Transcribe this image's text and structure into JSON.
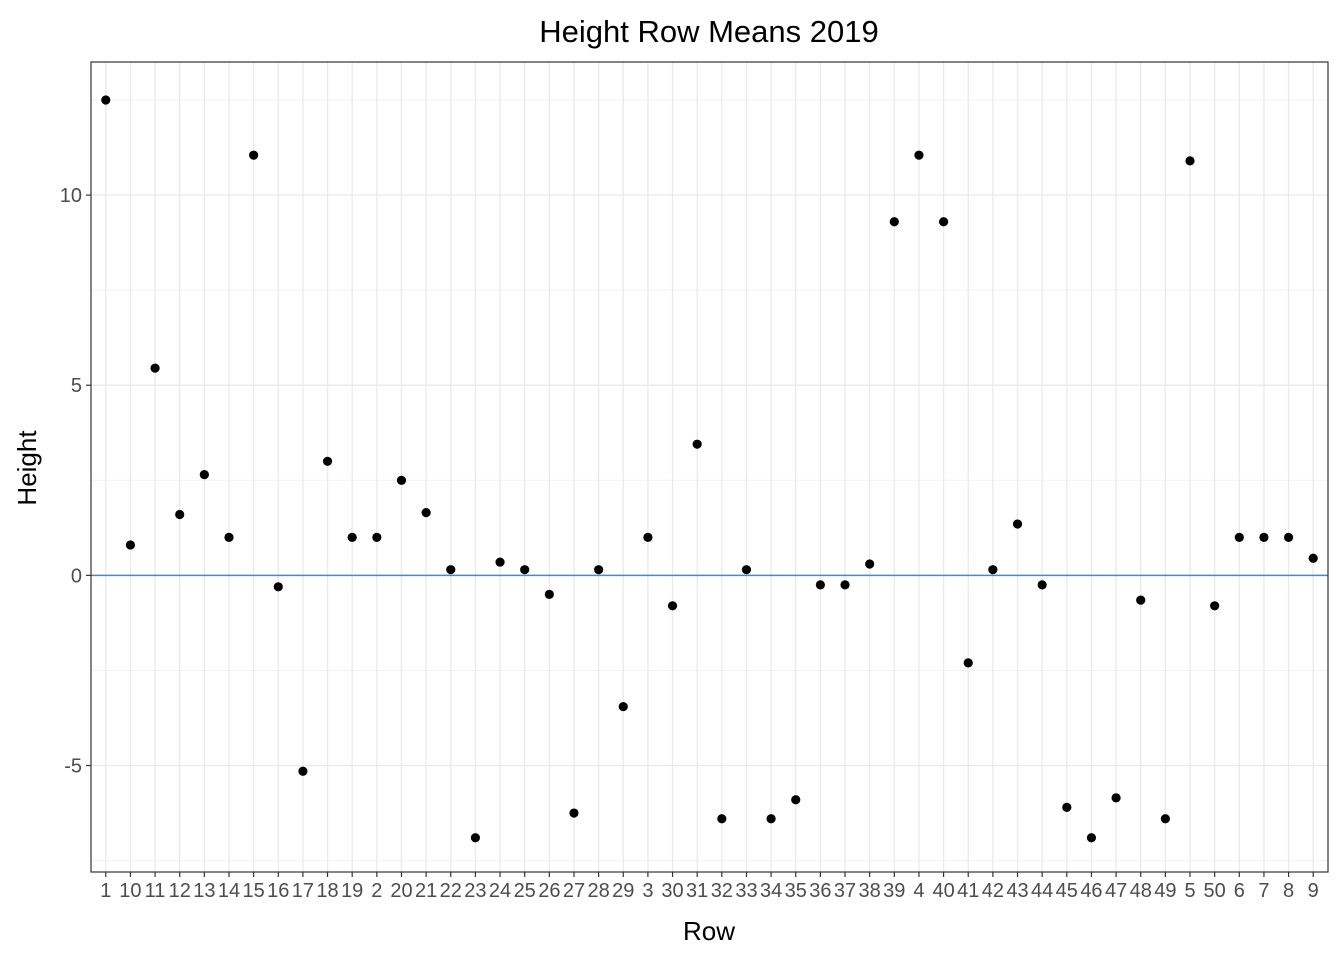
{
  "chart_data": {
    "type": "scatter",
    "title": "Height Row Means 2019",
    "xlabel": "Row",
    "ylabel": "Height",
    "ylim": [
      -7.8,
      13.5
    ],
    "yticks": [
      -5,
      0,
      5,
      10
    ],
    "grid": true,
    "hline": {
      "y": 0,
      "color": "#3a8fd6"
    },
    "point_color": "#000000",
    "categories": [
      "1",
      "10",
      "11",
      "12",
      "13",
      "14",
      "15",
      "16",
      "17",
      "18",
      "19",
      "2",
      "20",
      "21",
      "22",
      "23",
      "24",
      "25",
      "26",
      "27",
      "28",
      "29",
      "3",
      "30",
      "31",
      "32",
      "33",
      "34",
      "35",
      "36",
      "37",
      "38",
      "39",
      "4",
      "40",
      "41",
      "42",
      "43",
      "44",
      "45",
      "46",
      "47",
      "48",
      "49",
      "5",
      "50",
      "6",
      "7",
      "8",
      "9"
    ],
    "values": [
      12.5,
      0.8,
      5.45,
      1.6,
      2.65,
      1.0,
      11.05,
      -0.3,
      -5.15,
      3.0,
      1.0,
      1.0,
      2.5,
      1.65,
      0.15,
      -6.9,
      0.35,
      0.15,
      -0.5,
      -6.25,
      0.15,
      -3.45,
      1.0,
      -0.8,
      3.45,
      -6.4,
      0.15,
      -6.4,
      -5.9,
      -0.25,
      -0.25,
      0.3,
      9.3,
      11.05,
      9.3,
      -2.3,
      0.15,
      1.35,
      -0.25,
      -6.1,
      -6.9,
      -5.85,
      -0.65,
      -6.4,
      10.9,
      -0.8,
      1.0,
      1.0,
      1.0,
      0.45
    ]
  }
}
